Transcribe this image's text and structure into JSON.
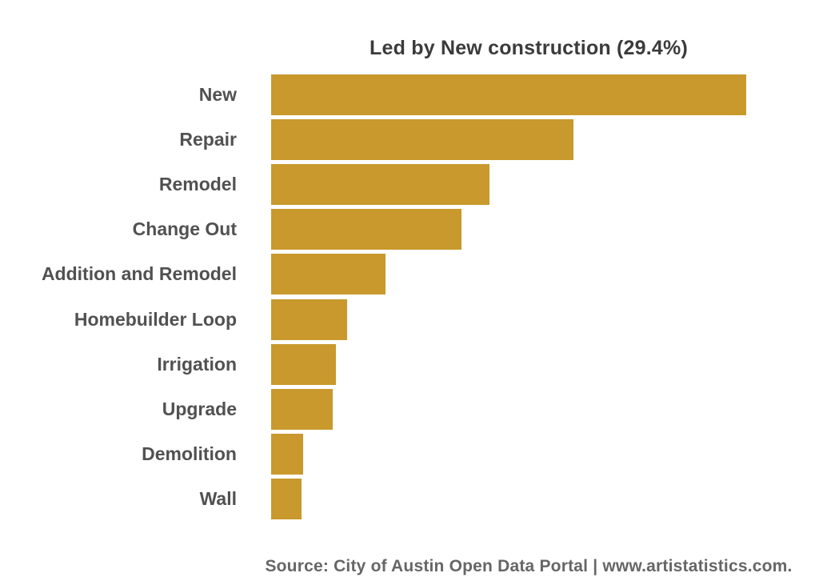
{
  "title": "Led by New construction (29.4%)",
  "source": "Source: City of Austin Open Data Portal | www.artistatistics.com.",
  "colors": {
    "background": "#FFFFFF",
    "bar": "#C9992D",
    "title_text": "#3B3B3B",
    "label_text": "#515151",
    "source_text": "#666666"
  },
  "chart_data": {
    "type": "bar",
    "orientation": "horizontal",
    "title": "Led by New construction (29.4%)",
    "categories": [
      "New",
      "Repair",
      "Remodel",
      "Change Out",
      "Addition and Remodel",
      "Homebuilder Loop",
      "Irrigation",
      "Upgrade",
      "Demolition",
      "Wall"
    ],
    "values": [
      29.4,
      18.7,
      13.5,
      11.8,
      7.1,
      4.7,
      4.0,
      3.8,
      2.0,
      1.9
    ],
    "unit": "%",
    "xlabel": "",
    "ylabel": "",
    "xlim": [
      0,
      30
    ],
    "grid": false,
    "legend": false,
    "bar_color": "#C9992D",
    "annotation": "Source: City of Austin Open Data Portal | www.artistatistics.com."
  }
}
